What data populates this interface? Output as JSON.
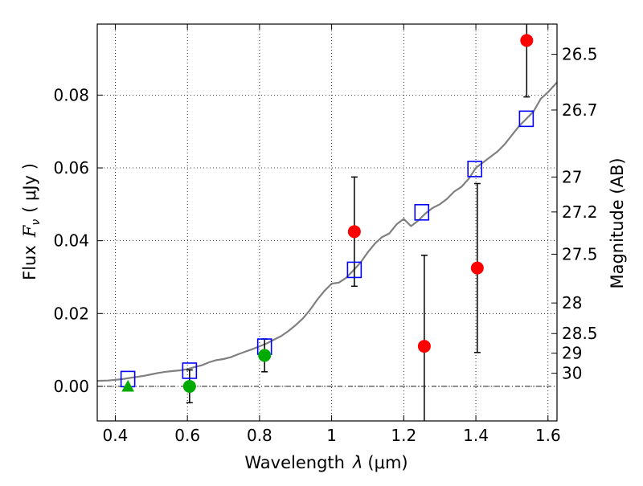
{
  "chart_data": {
    "type": "scatter",
    "xlabel_main": "Wavelength",
    "xlabel_symbol": "λ",
    "xlabel_unit": "(μm)",
    "ylabel_main": "Flux",
    "ylabel_symbol": "F",
    "ylabel_subscript": "ν",
    "ylabel_unit": "( μJy )",
    "y2label": "Magnitude (AB)",
    "xlim": [
      0.35,
      1.625
    ],
    "ylim": [
      -0.0095,
      0.0995
    ],
    "grid": true,
    "x_ticks": [
      {
        "value": 0.4,
        "label": "0.4"
      },
      {
        "value": 0.6,
        "label": "0.6"
      },
      {
        "value": 0.8,
        "label": "0.8"
      },
      {
        "value": 1.0,
        "label": "1"
      },
      {
        "value": 1.2,
        "label": "1.2"
      },
      {
        "value": 1.4,
        "label": "1.4"
      },
      {
        "value": 1.6,
        "label": "1.6"
      }
    ],
    "y_ticks": [
      {
        "value": 0.0,
        "label": "0.00"
      },
      {
        "value": 0.02,
        "label": "0.02"
      },
      {
        "value": 0.04,
        "label": "0.04"
      },
      {
        "value": 0.06,
        "label": "0.06"
      },
      {
        "value": 0.08,
        "label": "0.08"
      }
    ],
    "magnitude_ticks": [
      {
        "label": "26.5",
        "flux": 0.0912
      },
      {
        "label": "26.7",
        "flux": 0.0759
      },
      {
        "label": "27",
        "flux": 0.0575
      },
      {
        "label": "27.2",
        "flux": 0.0479
      },
      {
        "label": "27.5",
        "flux": 0.0363
      },
      {
        "label": "28",
        "flux": 0.0229
      },
      {
        "label": "28.5",
        "flux": 0.0145
      },
      {
        "label": "29",
        "flux": 0.0091
      },
      {
        "label": "30",
        "flux": 0.0036
      }
    ],
    "model_color": "#808080",
    "model_spectrum": [
      [
        0.35,
        0.0015
      ],
      [
        0.38,
        0.0016
      ],
      [
        0.4,
        0.0018
      ],
      [
        0.42,
        0.002
      ],
      [
        0.44,
        0.0023
      ],
      [
        0.46,
        0.0026
      ],
      [
        0.48,
        0.0029
      ],
      [
        0.5,
        0.0033
      ],
      [
        0.52,
        0.0037
      ],
      [
        0.54,
        0.004
      ],
      [
        0.56,
        0.0042
      ],
      [
        0.58,
        0.0044
      ],
      [
        0.6,
        0.0047
      ],
      [
        0.62,
        0.0053
      ],
      [
        0.64,
        0.0058
      ],
      [
        0.66,
        0.0066
      ],
      [
        0.68,
        0.0072
      ],
      [
        0.7,
        0.0075
      ],
      [
        0.72,
        0.008
      ],
      [
        0.74,
        0.0088
      ],
      [
        0.76,
        0.0095
      ],
      [
        0.78,
        0.0102
      ],
      [
        0.8,
        0.011
      ],
      [
        0.82,
        0.0118
      ],
      [
        0.84,
        0.0128
      ],
      [
        0.86,
        0.0138
      ],
      [
        0.88,
        0.0152
      ],
      [
        0.9,
        0.0168
      ],
      [
        0.92,
        0.0186
      ],
      [
        0.94,
        0.021
      ],
      [
        0.96,
        0.0238
      ],
      [
        0.98,
        0.0262
      ],
      [
        1.0,
        0.0282
      ],
      [
        1.02,
        0.0285
      ],
      [
        1.04,
        0.0298
      ],
      [
        1.06,
        0.0318
      ],
      [
        1.08,
        0.034
      ],
      [
        1.1,
        0.0368
      ],
      [
        1.12,
        0.0392
      ],
      [
        1.14,
        0.041
      ],
      [
        1.16,
        0.042
      ],
      [
        1.18,
        0.0445
      ],
      [
        1.2,
        0.046
      ],
      [
        1.22,
        0.044
      ],
      [
        1.24,
        0.0455
      ],
      [
        1.26,
        0.0475
      ],
      [
        1.28,
        0.049
      ],
      [
        1.3,
        0.05
      ],
      [
        1.32,
        0.0515
      ],
      [
        1.34,
        0.0535
      ],
      [
        1.36,
        0.0548
      ],
      [
        1.38,
        0.057
      ],
      [
        1.4,
        0.06
      ],
      [
        1.42,
        0.0615
      ],
      [
        1.44,
        0.063
      ],
      [
        1.46,
        0.0645
      ],
      [
        1.48,
        0.0665
      ],
      [
        1.5,
        0.069
      ],
      [
        1.52,
        0.0715
      ],
      [
        1.54,
        0.0735
      ],
      [
        1.56,
        0.0755
      ],
      [
        1.58,
        0.079
      ],
      [
        1.6,
        0.0808
      ],
      [
        1.625,
        0.0835
      ]
    ],
    "model_photometry": {
      "name": "model band flux",
      "marker": "open-square",
      "color": "#0000ff",
      "points": [
        {
          "x": 0.435,
          "y": 0.002
        },
        {
          "x": 0.606,
          "y": 0.0043
        },
        {
          "x": 0.814,
          "y": 0.0109
        },
        {
          "x": 1.063,
          "y": 0.032
        },
        {
          "x": 1.25,
          "y": 0.0478
        },
        {
          "x": 1.397,
          "y": 0.0597
        },
        {
          "x": 1.54,
          "y": 0.0735
        }
      ]
    },
    "observed": {
      "name": "observed flux",
      "points": [
        {
          "x": 0.435,
          "y": 0.0,
          "err_low": null,
          "err_high": null,
          "color": "#00aa00",
          "marker": "triangle"
        },
        {
          "x": 0.606,
          "y": 0.0,
          "err_low": -0.0045,
          "err_high": 0.0045,
          "color": "#00aa00",
          "marker": "circle"
        },
        {
          "x": 0.814,
          "y": 0.0085,
          "err_low": 0.004,
          "err_high": 0.013,
          "color": "#00aa00",
          "marker": "circle"
        },
        {
          "x": 1.063,
          "y": 0.0425,
          "err_low": 0.0275,
          "err_high": 0.0575,
          "color": "#ff0000",
          "marker": "circle"
        },
        {
          "x": 1.257,
          "y": 0.011,
          "err_low": -0.0095,
          "err_high": 0.036,
          "color": "#ff0000",
          "marker": "circle"
        },
        {
          "x": 1.404,
          "y": 0.0325,
          "err_low": 0.0093,
          "err_high": 0.0557,
          "color": "#ff0000",
          "marker": "circle"
        },
        {
          "x": 1.541,
          "y": 0.095,
          "err_low": 0.0795,
          "err_high": 0.0995,
          "color": "#ff0000",
          "marker": "circle"
        }
      ]
    }
  }
}
